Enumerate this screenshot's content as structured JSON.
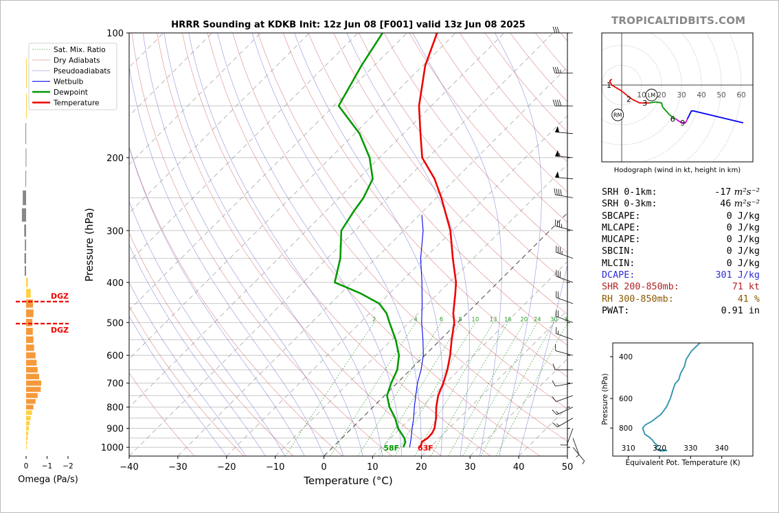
{
  "title": "HRRR Sounding at KDKB Init: 12z Jun 08 [F001] valid 13z Jun 08 2025",
  "brand": "TROPICALTIDBITS.COM",
  "colors": {
    "temperature": "#ee0000",
    "dewpoint": "#009900",
    "wetbulb": "#0000ee",
    "dgz": "#ee0000",
    "theta_e": "#3a97b0",
    "omega_up": "#f59a3a",
    "omega_weak": "#ffd040",
    "omega_down": "#888888"
  },
  "chart_data": [
    {
      "type": "skew-t",
      "title": "HRRR Sounding at KDKB Init: 12z Jun 08 [F001] valid 13z Jun 08 2025",
      "xlabel": "Temperature (°C)",
      "ylabel": "Pressure (hPa)",
      "xlim": [
        -40,
        50
      ],
      "ylim": [
        1050,
        100
      ],
      "log_y": true,
      "skew_deg": 45,
      "xticks": [
        -40,
        -30,
        -20,
        -10,
        0,
        10,
        20,
        30,
        40,
        50
      ],
      "yticks": [
        1000,
        900,
        800,
        700,
        600,
        500,
        400,
        300,
        200,
        100
      ],
      "legend": {
        "placement": "upper-left",
        "entries": [
          {
            "label": "Sat. Mix. Ratio",
            "style": "dotted-green"
          },
          {
            "label": "Dry Adiabats",
            "style": "thin-red"
          },
          {
            "label": "Pseudoadiabats",
            "style": "thin-blue"
          },
          {
            "label": "Wetbulb",
            "style": "blue"
          },
          {
            "label": "Dewpoint",
            "style": "green"
          },
          {
            "label": "Temperature",
            "style": "red"
          }
        ]
      },
      "mixing_ratio_labels": [
        "2",
        "4",
        "6",
        "8",
        "10",
        "13",
        "16",
        "20",
        "24",
        "30",
        "36"
      ],
      "surface_labels": {
        "dewpoint": "58F",
        "temperature": "63F"
      },
      "series": [
        {
          "name": "Temperature",
          "points": [
            [
              1000,
              18.0
            ],
            [
              970,
              17.2
            ],
            [
              950,
              17.6
            ],
            [
              925,
              17.5
            ],
            [
              900,
              17.0
            ],
            [
              850,
              15.2
            ],
            [
              800,
              13.0
            ],
            [
              750,
              11.0
            ],
            [
              700,
              9.5
            ],
            [
              650,
              7.6
            ],
            [
              600,
              5.2
            ],
            [
              550,
              2.3
            ],
            [
              500,
              -0.7
            ],
            [
              475,
              -2.8
            ],
            [
              450,
              -4.6
            ],
            [
              425,
              -6.5
            ],
            [
              400,
              -8.6
            ],
            [
              350,
              -14.2
            ],
            [
              300,
              -20.4
            ],
            [
              250,
              -29.0
            ],
            [
              225,
              -34.3
            ],
            [
              200,
              -41.2
            ],
            [
              175,
              -46.5
            ],
            [
              150,
              -52.5
            ],
            [
              120,
              -59.5
            ],
            [
              100,
              -63.8
            ]
          ]
        },
        {
          "name": "Dewpoint",
          "points": [
            [
              1000,
              14.5
            ],
            [
              970,
              13.8
            ],
            [
              950,
              12.8
            ],
            [
              925,
              11.2
            ],
            [
              900,
              9.5
            ],
            [
              850,
              6.8
            ],
            [
              800,
              3.4
            ],
            [
              750,
              0.5
            ],
            [
              700,
              -1.2
            ],
            [
              650,
              -2.7
            ],
            [
              600,
              -5.3
            ],
            [
              550,
              -9.2
            ],
            [
              500,
              -14.0
            ],
            [
              475,
              -16.5
            ],
            [
              450,
              -20.0
            ],
            [
              425,
              -26.0
            ],
            [
              400,
              -33.5
            ],
            [
              350,
              -37.3
            ],
            [
              300,
              -42.8
            ],
            [
              270,
              -44.2
            ],
            [
              250,
              -45.0
            ],
            [
              225,
              -47.0
            ],
            [
              200,
              -52.0
            ],
            [
              175,
              -59.0
            ],
            [
              150,
              -69.0
            ],
            [
              120,
              -72.6
            ],
            [
              100,
              -75.0
            ]
          ]
        },
        {
          "name": "Wetbulb",
          "points": [
            [
              1000,
              15.8
            ],
            [
              950,
              14.2
            ],
            [
              900,
              12.4
            ],
            [
              850,
              10.6
            ],
            [
              800,
              8.5
            ],
            [
              750,
              6.4
            ],
            [
              700,
              4.2
            ],
            [
              650,
              2.2
            ],
            [
              600,
              -0.3
            ],
            [
              550,
              -3.6
            ],
            [
              500,
              -7.4
            ],
            [
              450,
              -11.2
            ],
            [
              400,
              -15.6
            ],
            [
              350,
              -20.8
            ],
            [
              300,
              -26.0
            ],
            [
              275,
              -29.5
            ]
          ]
        }
      ],
      "wind_barbs_kt": [
        {
          "p": 1000,
          "dir": 140,
          "spd": 5
        },
        {
          "p": 950,
          "dir": 160,
          "spd": 5
        },
        {
          "p": 900,
          "dir": 200,
          "spd": 10
        },
        {
          "p": 850,
          "dir": 240,
          "spd": 15
        },
        {
          "p": 800,
          "dir": 245,
          "spd": 15
        },
        {
          "p": 750,
          "dir": 250,
          "spd": 10
        },
        {
          "p": 700,
          "dir": 260,
          "spd": 10
        },
        {
          "p": 650,
          "dir": 270,
          "spd": 10
        },
        {
          "p": 600,
          "dir": 285,
          "spd": 10
        },
        {
          "p": 550,
          "dir": 290,
          "spd": 15
        },
        {
          "p": 500,
          "dir": 290,
          "spd": 20
        },
        {
          "p": 450,
          "dir": 290,
          "spd": 20
        },
        {
          "p": 400,
          "dir": 290,
          "spd": 30
        },
        {
          "p": 350,
          "dir": 290,
          "spd": 35
        },
        {
          "p": 300,
          "dir": 285,
          "spd": 35
        },
        {
          "p": 250,
          "dir": 280,
          "spd": 40
        },
        {
          "p": 225,
          "dir": 275,
          "spd": 50
        },
        {
          "p": 200,
          "dir": 275,
          "spd": 55
        },
        {
          "p": 175,
          "dir": 275,
          "spd": 50
        },
        {
          "p": 150,
          "dir": 270,
          "spd": 40
        },
        {
          "p": 125,
          "dir": 270,
          "spd": 35
        },
        {
          "p": 100,
          "dir": 270,
          "spd": 30
        }
      ]
    },
    {
      "type": "hodograph",
      "caption": "Hodograph (wind in kt, height in km)",
      "ring_labels": [
        "10",
        "20",
        "30",
        "40",
        "50",
        "60"
      ],
      "markers": [
        "LM",
        "RM"
      ],
      "height_labels": [
        {
          "km": "1",
          "u": -5,
          "v": 0
        },
        {
          "km": "2",
          "u": 5,
          "v": -7
        },
        {
          "km": "3",
          "u": 13,
          "v": -9
        },
        {
          "km": "6",
          "u": 27,
          "v": -17
        },
        {
          "km": "9",
          "u": 32,
          "v": -19
        }
      ],
      "segments": [
        {
          "range": "0-1 km",
          "color": "#ee0000",
          "points": [
            [
              -5,
              3
            ],
            [
              -6,
              2
            ],
            [
              -5,
              0
            ]
          ]
        },
        {
          "range": "1-3 km",
          "color": "#ee0000",
          "points": [
            [
              -5,
              0
            ],
            [
              0,
              -3
            ],
            [
              5,
              -7
            ],
            [
              9,
              -9
            ],
            [
              12,
              -9
            ],
            [
              14,
              -9
            ]
          ]
        },
        {
          "range": "3-6 km",
          "color": "#009900",
          "points": [
            [
              14,
              -9
            ],
            [
              17,
              -8.5
            ],
            [
              20,
              -9
            ],
            [
              20.5,
              -11
            ],
            [
              24,
              -15
            ],
            [
              27,
              -17
            ]
          ]
        },
        {
          "range": "6-9 km",
          "color": "#cc00cc",
          "points": [
            [
              27,
              -17
            ],
            [
              30,
              -19
            ],
            [
              32,
              -19
            ],
            [
              33,
              -17
            ]
          ]
        },
        {
          "range": "9+ km",
          "color": "#0000ee",
          "points": [
            [
              33,
              -17
            ],
            [
              35,
              -13
            ],
            [
              36,
              -13
            ],
            [
              61,
              -19
            ]
          ]
        }
      ]
    },
    {
      "type": "line",
      "name": "equivalent-potential-temperature",
      "xlabel": "Equivalent Pot. Temperature (K)",
      "ylabel": "Pressure (hPa)",
      "xlim": [
        305,
        350
      ],
      "ylim": [
        1050,
        350
      ],
      "xticks": [
        310,
        320,
        330,
        340
      ],
      "yticks": [
        400,
        600,
        800
      ],
      "points": [
        [
          1000,
          320.0
        ],
        [
          995,
          322.5
        ],
        [
          985,
          319.2
        ],
        [
          970,
          318.7
        ],
        [
          950,
          319.5
        ],
        [
          925,
          318.4
        ],
        [
          900,
          317.8
        ],
        [
          875,
          316.8
        ],
        [
          850,
          315.3
        ],
        [
          800,
          314.6
        ],
        [
          775,
          315.5
        ],
        [
          750,
          317.5
        ],
        [
          700,
          320.5
        ],
        [
          650,
          322.3
        ],
        [
          600,
          323.5
        ],
        [
          560,
          324.2
        ],
        [
          520,
          325.0
        ],
        [
          500,
          326.2
        ],
        [
          470,
          326.8
        ],
        [
          440,
          328.0
        ],
        [
          410,
          328.6
        ],
        [
          380,
          330.2
        ],
        [
          360,
          332.0
        ],
        [
          350,
          333.0
        ]
      ]
    },
    {
      "type": "bar",
      "name": "omega-profile",
      "xlabel": "Omega (Pa/s)",
      "xticks": [
        "0",
        "−1",
        "−2"
      ],
      "xlim": [
        0.3,
        -2.0
      ],
      "dgz_label": "DGZ",
      "dgz_top_hpa": 445,
      "dgz_bottom_hpa": 503,
      "values": [
        {
          "p": 1000,
          "w": -0.02
        },
        {
          "p": 975,
          "w": -0.05
        },
        {
          "p": 950,
          "w": -0.07
        },
        {
          "p": 925,
          "w": -0.1
        },
        {
          "p": 900,
          "w": -0.13
        },
        {
          "p": 875,
          "w": -0.17
        },
        {
          "p": 850,
          "w": -0.22
        },
        {
          "p": 825,
          "w": -0.28
        },
        {
          "p": 800,
          "w": -0.35
        },
        {
          "p": 775,
          "w": -0.45
        },
        {
          "p": 750,
          "w": -0.55
        },
        {
          "p": 725,
          "w": -0.7
        },
        {
          "p": 700,
          "w": -0.72
        },
        {
          "p": 675,
          "w": -0.62
        },
        {
          "p": 650,
          "w": -0.55
        },
        {
          "p": 625,
          "w": -0.5
        },
        {
          "p": 600,
          "w": -0.45
        },
        {
          "p": 575,
          "w": -0.38
        },
        {
          "p": 550,
          "w": -0.35
        },
        {
          "p": 525,
          "w": -0.32
        },
        {
          "p": 500,
          "w": -0.3
        },
        {
          "p": 475,
          "w": -0.35
        },
        {
          "p": 450,
          "w": -0.33
        },
        {
          "p": 425,
          "w": -0.22
        },
        {
          "p": 400,
          "w": -0.08
        },
        {
          "p": 375,
          "w": 0.07
        },
        {
          "p": 350,
          "w": 0.08
        },
        {
          "p": 325,
          "w": 0.06
        },
        {
          "p": 300,
          "w": 0.09
        },
        {
          "p": 275,
          "w": 0.2
        },
        {
          "p": 250,
          "w": 0.16
        },
        {
          "p": 225,
          "w": 0.03
        },
        {
          "p": 200,
          "w": 0.02
        },
        {
          "p": 175,
          "w": 0.03
        },
        {
          "p": 150,
          "w": -0.02
        },
        {
          "p": 125,
          "w": -0.02
        }
      ]
    }
  ],
  "stats": [
    {
      "label": "SRH 0-1km:",
      "value": "-17",
      "unit": "m²s⁻²",
      "color": "#000000"
    },
    {
      "label": "SRH 0-3km:",
      "value": "46",
      "unit": "m²s⁻²",
      "color": "#000000"
    },
    {
      "label": "SBCAPE:",
      "value": "0 J/kg",
      "unit": "",
      "color": "#000000"
    },
    {
      "label": "MLCAPE:",
      "value": "0 J/kg",
      "unit": "",
      "color": "#000000"
    },
    {
      "label": "MUCAPE:",
      "value": "0 J/kg",
      "unit": "",
      "color": "#000000"
    },
    {
      "label": "SBCIN:",
      "value": "0 J/kg",
      "unit": "",
      "color": "#000000"
    },
    {
      "label": "MLCIN:",
      "value": "0 J/kg",
      "unit": "",
      "color": "#000000"
    },
    {
      "label": "DCAPE:",
      "value": "301 J/kg",
      "unit": "",
      "color": "#2b2bd6"
    },
    {
      "label": "SHR 200-850mb:",
      "value": "71 kt",
      "unit": "",
      "color": "#b22222"
    },
    {
      "label": "RH 300-850mb:",
      "value": "41 %",
      "unit": "",
      "color": "#8b5a00"
    },
    {
      "label": "PWAT:",
      "value": "0.91 in",
      "unit": "",
      "color": "#000000"
    }
  ]
}
